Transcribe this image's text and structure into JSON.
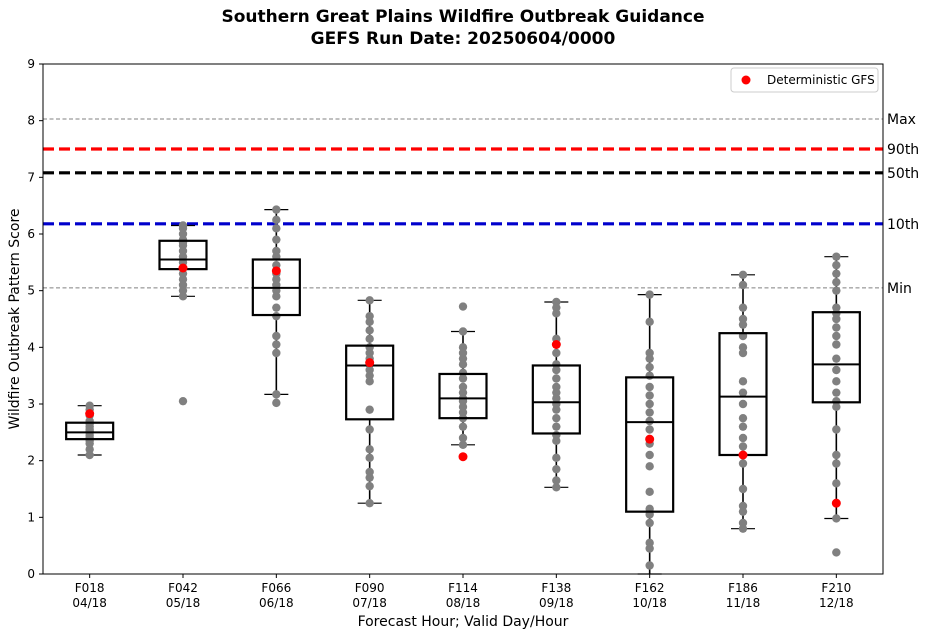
{
  "chart_data": {
    "type": "box",
    "title": "Southern Great Plains Wildfire Outbreak Guidance",
    "subtitle": "GEFS Run Date: 20250604/0000",
    "xlabel": "Forecast Hour; Valid Day/Hour",
    "ylabel": "Wildfire Outbreak Pattern Score",
    "ylim": [
      0,
      9
    ],
    "yticks": [
      "0",
      "1",
      "2",
      "3",
      "4",
      "5",
      "6",
      "7",
      "8",
      "9"
    ],
    "grid": false,
    "legend": {
      "position": "top-right",
      "entries": [
        {
          "label": "Deterministic GFS",
          "color": "#ff0000"
        }
      ]
    },
    "categories": [
      {
        "hour": "F018",
        "valid": "04/18"
      },
      {
        "hour": "F042",
        "valid": "05/18"
      },
      {
        "hour": "F066",
        "valid": "06/18"
      },
      {
        "hour": "F090",
        "valid": "07/18"
      },
      {
        "hour": "F114",
        "valid": "08/18"
      },
      {
        "hour": "F138",
        "valid": "09/18"
      },
      {
        "hour": "F162",
        "valid": "10/18"
      },
      {
        "hour": "F186",
        "valid": "11/18"
      },
      {
        "hour": "F210",
        "valid": "12/18"
      }
    ],
    "boxes": [
      {
        "whisker_low": 2.1,
        "q1": 2.38,
        "median": 2.5,
        "q3": 2.67,
        "whisker_high": 2.97
      },
      {
        "whisker_low": 4.9,
        "q1": 5.38,
        "median": 5.55,
        "q3": 5.88,
        "whisker_high": 6.15
      },
      {
        "whisker_low": 3.17,
        "q1": 4.57,
        "median": 5.05,
        "q3": 5.55,
        "whisker_high": 6.43
      },
      {
        "whisker_low": 1.25,
        "q1": 2.73,
        "median": 3.68,
        "q3": 4.03,
        "whisker_high": 4.83
      },
      {
        "whisker_low": 2.28,
        "q1": 2.75,
        "median": 3.1,
        "q3": 3.53,
        "whisker_high": 4.28
      },
      {
        "whisker_low": 1.53,
        "q1": 2.48,
        "median": 3.03,
        "q3": 3.68,
        "whisker_high": 4.8
      },
      {
        "whisker_low": 0.0,
        "q1": 1.1,
        "median": 2.68,
        "q3": 3.47,
        "whisker_high": 4.93
      },
      {
        "whisker_low": 0.8,
        "q1": 2.1,
        "median": 3.13,
        "q3": 4.25,
        "whisker_high": 5.28
      },
      {
        "whisker_low": 0.98,
        "q1": 3.03,
        "median": 3.7,
        "q3": 4.62,
        "whisker_high": 5.6
      }
    ],
    "ensemble_members": [
      [
        2.1,
        2.2,
        2.3,
        2.35,
        2.4,
        2.45,
        2.5,
        2.52,
        2.55,
        2.6,
        2.65,
        2.7,
        2.8,
        2.9,
        2.97
      ],
      [
        3.05,
        4.9,
        5.0,
        5.1,
        5.2,
        5.3,
        5.4,
        5.5,
        5.6,
        5.7,
        5.8,
        5.85,
        5.9,
        6.0,
        6.1,
        6.15
      ],
      [
        3.02,
        3.17,
        3.9,
        4.05,
        4.2,
        4.55,
        4.7,
        4.9,
        5.0,
        5.1,
        5.2,
        5.3,
        5.45,
        5.6,
        5.7,
        5.9,
        6.1,
        6.25,
        6.43
      ],
      [
        1.25,
        1.55,
        1.7,
        1.8,
        2.05,
        2.2,
        2.55,
        2.9,
        3.4,
        3.5,
        3.6,
        3.7,
        3.8,
        3.9,
        4.0,
        4.15,
        4.3,
        4.45,
        4.55,
        4.83
      ],
      [
        2.28,
        2.4,
        2.6,
        2.75,
        2.85,
        2.95,
        3.05,
        3.1,
        3.2,
        3.3,
        3.45,
        3.55,
        3.7,
        3.8,
        3.9,
        4.0,
        4.28,
        4.72
      ],
      [
        1.53,
        1.65,
        1.85,
        2.05,
        2.35,
        2.45,
        2.6,
        2.75,
        2.9,
        3.0,
        3.1,
        3.2,
        3.3,
        3.45,
        3.6,
        3.7,
        3.9,
        4.15,
        4.6,
        4.7,
        4.8
      ],
      [
        0.15,
        0.45,
        0.55,
        0.9,
        1.05,
        1.15,
        1.45,
        1.9,
        2.1,
        2.3,
        2.55,
        2.7,
        2.85,
        3.0,
        3.15,
        3.3,
        3.5,
        3.65,
        3.8,
        3.9,
        4.45,
        4.93
      ],
      [
        0.8,
        0.9,
        1.1,
        1.2,
        1.5,
        1.95,
        2.1,
        2.25,
        2.4,
        2.6,
        2.75,
        3.0,
        3.2,
        3.4,
        3.9,
        4.0,
        4.2,
        4.4,
        4.5,
        4.7,
        5.1,
        5.28
      ],
      [
        0.38,
        0.98,
        1.6,
        1.95,
        2.1,
        2.55,
        2.95,
        3.05,
        3.2,
        3.4,
        3.6,
        3.8,
        4.05,
        4.2,
        4.35,
        4.5,
        4.6,
        4.7,
        5.0,
        5.15,
        5.3,
        5.45,
        5.6
      ]
    ],
    "deterministic_gfs": [
      2.83,
      5.4,
      5.35,
      3.73,
      2.07,
      4.05,
      2.38,
      2.1,
      1.25
    ],
    "reference_lines": [
      {
        "label": "Max",
        "value": 8.03,
        "color": "#808080",
        "style": "dashed-thin"
      },
      {
        "label": "90th",
        "value": 7.5,
        "color": "#ff0000",
        "style": "dashed-thick"
      },
      {
        "label": "50th",
        "value": 7.08,
        "color": "#000000",
        "style": "dashed-thick"
      },
      {
        "label": "10th",
        "value": 6.18,
        "color": "#0000cc",
        "style": "dashed-thick"
      },
      {
        "label": "Min",
        "value": 5.05,
        "color": "#808080",
        "style": "dashed-thin"
      }
    ],
    "colors": {
      "member": "#808080",
      "deterministic": "#ff0000",
      "box": "#000000"
    }
  }
}
